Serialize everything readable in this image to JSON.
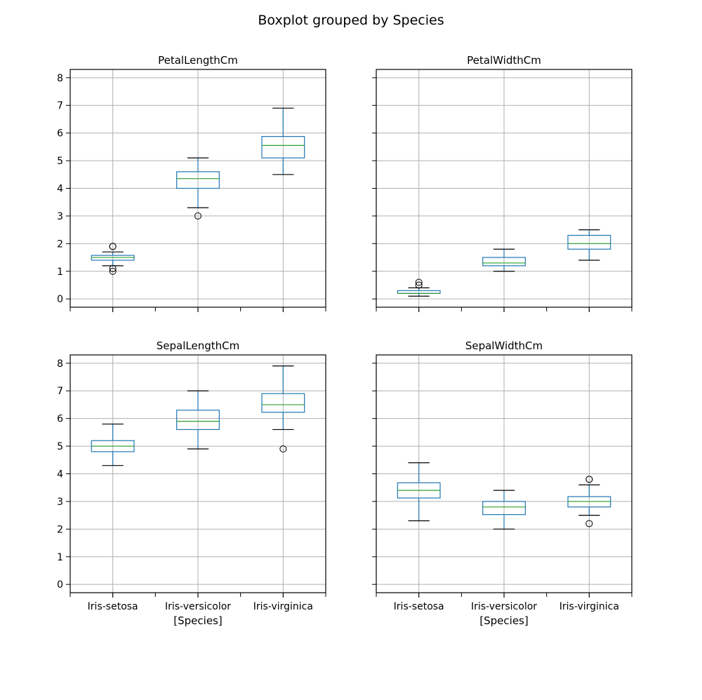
{
  "figure": {
    "title": "Boxplot grouped by Species"
  },
  "colors": {
    "box": "#1f77b4",
    "median": "#2ca02c",
    "whisker_cap": "#000000",
    "grid": "#b0b0b0",
    "flier": "#000000"
  },
  "chart_data": [
    {
      "type": "boxplot",
      "title": "PetalLengthCm",
      "categories": [
        "Iris-setosa",
        "Iris-versicolor",
        "Iris-virginica"
      ],
      "xlabel": "",
      "ylim": [
        -0.3,
        8.3
      ],
      "yticks": [
        "0",
        "1",
        "2",
        "3",
        "4",
        "5",
        "6",
        "7",
        "8"
      ],
      "grid": true,
      "boxes": [
        {
          "whislo": 1.2,
          "q1": 1.4,
          "med": 1.5,
          "q3": 1.575,
          "whishi": 1.7,
          "fliers": [
            1.0,
            1.1,
            1.9,
            1.9
          ]
        },
        {
          "whislo": 3.3,
          "q1": 4.0,
          "med": 4.35,
          "q3": 4.6,
          "whishi": 5.1,
          "fliers": [
            3.0
          ]
        },
        {
          "whislo": 4.5,
          "q1": 5.1,
          "med": 5.55,
          "q3": 5.875,
          "whishi": 6.9,
          "fliers": []
        }
      ]
    },
    {
      "type": "boxplot",
      "title": "PetalWidthCm",
      "categories": [
        "Iris-setosa",
        "Iris-versicolor",
        "Iris-virginica"
      ],
      "xlabel": "",
      "ylim": [
        -0.3,
        8.3
      ],
      "yticks": [
        "0",
        "1",
        "2",
        "3",
        "4",
        "5",
        "6",
        "7",
        "8"
      ],
      "grid": true,
      "boxes": [
        {
          "whislo": 0.1,
          "q1": 0.2,
          "med": 0.2,
          "q3": 0.3,
          "whishi": 0.4,
          "fliers": [
            0.5,
            0.6
          ]
        },
        {
          "whislo": 1.0,
          "q1": 1.2,
          "med": 1.3,
          "q3": 1.5,
          "whishi": 1.8,
          "fliers": []
        },
        {
          "whislo": 1.4,
          "q1": 1.8,
          "med": 2.0,
          "q3": 2.3,
          "whishi": 2.5,
          "fliers": []
        }
      ]
    },
    {
      "type": "boxplot",
      "title": "SepalLengthCm",
      "categories": [
        "Iris-setosa",
        "Iris-versicolor",
        "Iris-virginica"
      ],
      "xlabel": "[Species]",
      "ylim": [
        -0.3,
        8.3
      ],
      "yticks": [
        "0",
        "1",
        "2",
        "3",
        "4",
        "5",
        "6",
        "7",
        "8"
      ],
      "grid": true,
      "boxes": [
        {
          "whislo": 4.3,
          "q1": 4.8,
          "med": 5.0,
          "q3": 5.2,
          "whishi": 5.8,
          "fliers": []
        },
        {
          "whislo": 4.9,
          "q1": 5.6,
          "med": 5.9,
          "q3": 6.3,
          "whishi": 7.0,
          "fliers": []
        },
        {
          "whislo": 5.6,
          "q1": 6.225,
          "med": 6.5,
          "q3": 6.9,
          "whishi": 7.9,
          "fliers": [
            4.9
          ]
        }
      ]
    },
    {
      "type": "boxplot",
      "title": "SepalWidthCm",
      "categories": [
        "Iris-setosa",
        "Iris-versicolor",
        "Iris-virginica"
      ],
      "xlabel": "[Species]",
      "ylim": [
        -0.3,
        8.3
      ],
      "yticks": [
        "0",
        "1",
        "2",
        "3",
        "4",
        "5",
        "6",
        "7",
        "8"
      ],
      "grid": true,
      "boxes": [
        {
          "whislo": 2.3,
          "q1": 3.125,
          "med": 3.4,
          "q3": 3.675,
          "whishi": 4.4,
          "fliers": []
        },
        {
          "whislo": 2.0,
          "q1": 2.525,
          "med": 2.8,
          "q3": 3.0,
          "whishi": 3.4,
          "fliers": []
        },
        {
          "whislo": 2.5,
          "q1": 2.8,
          "med": 3.0,
          "q3": 3.175,
          "whishi": 3.6,
          "fliers": [
            2.2,
            3.8,
            3.8
          ]
        }
      ]
    }
  ]
}
